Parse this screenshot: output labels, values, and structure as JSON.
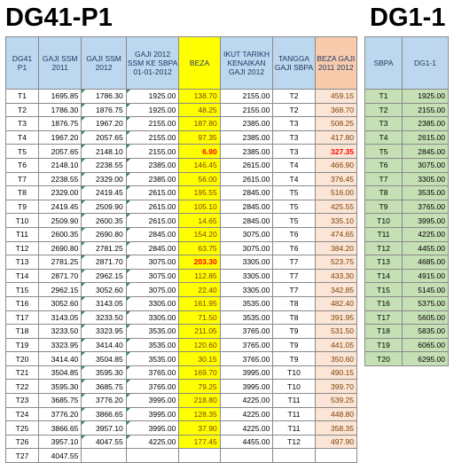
{
  "titles": {
    "left": "DG41-P1",
    "right": "DG1-1"
  },
  "headers": {
    "dg41": "DG41 P1",
    "gaji2011": "GAJI SSM 2011",
    "gaji2012": "GAJI SSM 2012",
    "gajiSbpa": "GAJI 2012 SSM KE SBPA 01-01-2012",
    "beza": "BEZA",
    "ikut": "IKUT TARIKH KENAIKAN GAJI 2012",
    "tangga": "TANGGA GAJI SBPA",
    "beza2": "BEZA GAJI 2011 2012"
  },
  "rows": [
    {
      "code": "T1",
      "g2011": "1695.85",
      "g2012": "1786.30",
      "gs": "1925.00",
      "beza": "138.70",
      "ikut": "2155.00",
      "tg": "T2",
      "b2": "459.15"
    },
    {
      "code": "T2",
      "g2011": "1786.30",
      "g2012": "1876.75",
      "gs": "1925.00",
      "beza": "48.25",
      "ikut": "2155.00",
      "tg": "T2",
      "b2": "368.70"
    },
    {
      "code": "T3",
      "g2011": "1876.75",
      "g2012": "1967.20",
      "gs": "2155.00",
      "beza": "187.80",
      "ikut": "2385.00",
      "tg": "T3",
      "b2": "508.25"
    },
    {
      "code": "T4",
      "g2011": "1967.20",
      "g2012": "2057.65",
      "gs": "2155.00",
      "beza": "97.35",
      "ikut": "2385.00",
      "tg": "T3",
      "b2": "417.80"
    },
    {
      "code": "T5",
      "g2011": "2057.65",
      "g2012": "2148.10",
      "gs": "2155.00",
      "beza": "6.90",
      "ikut": "2385.00",
      "tg": "T3",
      "b2": "327.35"
    },
    {
      "code": "T6",
      "g2011": "2148.10",
      "g2012": "2238.55",
      "gs": "2385.00",
      "beza": "146.45",
      "ikut": "2615.00",
      "tg": "T4",
      "b2": "466.90"
    },
    {
      "code": "T7",
      "g2011": "2238.55",
      "g2012": "2329.00",
      "gs": "2385.00",
      "beza": "56.00",
      "ikut": "2615.00",
      "tg": "T4",
      "b2": "376.45"
    },
    {
      "code": "T8",
      "g2011": "2329.00",
      "g2012": "2419.45",
      "gs": "2615.00",
      "beza": "195.55",
      "ikut": "2845.00",
      "tg": "T5",
      "b2": "516.00"
    },
    {
      "code": "T9",
      "g2011": "2419.45",
      "g2012": "2509.90",
      "gs": "2615.00",
      "beza": "105.10",
      "ikut": "2845.00",
      "tg": "T5",
      "b2": "425.55"
    },
    {
      "code": "T10",
      "g2011": "2509.90",
      "g2012": "2600.35",
      "gs": "2615.00",
      "beza": "14.65",
      "ikut": "2845.00",
      "tg": "T5",
      "b2": "335.10"
    },
    {
      "code": "T11",
      "g2011": "2600.35",
      "g2012": "2690.80",
      "gs": "2845.00",
      "beza": "154.20",
      "ikut": "3075.00",
      "tg": "T6",
      "b2": "474.65"
    },
    {
      "code": "T12",
      "g2011": "2690.80",
      "g2012": "2781.25",
      "gs": "2845.00",
      "beza": "63.75",
      "ikut": "3075.00",
      "tg": "T6",
      "b2": "384.20"
    },
    {
      "code": "T13",
      "g2011": "2781.25",
      "g2012": "2871.70",
      "gs": "3075.00",
      "beza": "203.30",
      "ikut": "3305.00",
      "tg": "T7",
      "b2": "523.75"
    },
    {
      "code": "T14",
      "g2011": "2871.70",
      "g2012": "2962.15",
      "gs": "3075.00",
      "beza": "112.85",
      "ikut": "3305.00",
      "tg": "T7",
      "b2": "433.30"
    },
    {
      "code": "T15",
      "g2011": "2962.15",
      "g2012": "3052.60",
      "gs": "3075.00",
      "beza": "22.40",
      "ikut": "3305.00",
      "tg": "T7",
      "b2": "342.85"
    },
    {
      "code": "T16",
      "g2011": "3052.60",
      "g2012": "3143.05",
      "gs": "3305.00",
      "beza": "161.95",
      "ikut": "3535.00",
      "tg": "T8",
      "b2": "482.40"
    },
    {
      "code": "T17",
      "g2011": "3143.05",
      "g2012": "3233.50",
      "gs": "3305.00",
      "beza": "71.50",
      "ikut": "3535.00",
      "tg": "T8",
      "b2": "391.95"
    },
    {
      "code": "T18",
      "g2011": "3233.50",
      "g2012": "3323.95",
      "gs": "3535.00",
      "beza": "211.05",
      "ikut": "3765.00",
      "tg": "T9",
      "b2": "531.50"
    },
    {
      "code": "T19",
      "g2011": "3323.95",
      "g2012": "3414.40",
      "gs": "3535.00",
      "beza": "120.60",
      "ikut": "3765.00",
      "tg": "T9",
      "b2": "441.05"
    },
    {
      "code": "T20",
      "g2011": "3414.40",
      "g2012": "3504.85",
      "gs": "3535.00",
      "beza": "30.15",
      "ikut": "3765.00",
      "tg": "T9",
      "b2": "350.60"
    },
    {
      "code": "T21",
      "g2011": "3504.85",
      "g2012": "3595.30",
      "gs": "3765.00",
      "beza": "169.70",
      "ikut": "3995.00",
      "tg": "T10",
      "b2": "490.15"
    },
    {
      "code": "T22",
      "g2011": "3595.30",
      "g2012": "3685.75",
      "gs": "3765.00",
      "beza": "79.25",
      "ikut": "3995.00",
      "tg": "T10",
      "b2": "399.70"
    },
    {
      "code": "T23",
      "g2011": "3685.75",
      "g2012": "3776.20",
      "gs": "3995.00",
      "beza": "218.80",
      "ikut": "4225.00",
      "tg": "T11",
      "b2": "539.25"
    },
    {
      "code": "T24",
      "g2011": "3776.20",
      "g2012": "3866.65",
      "gs": "3995.00",
      "beza": "128.35",
      "ikut": "4225.00",
      "tg": "T11",
      "b2": "448.80"
    },
    {
      "code": "T25",
      "g2011": "3866.65",
      "g2012": "3957.10",
      "gs": "3995.00",
      "beza": "37.90",
      "ikut": "4225.00",
      "tg": "T11",
      "b2": "358.35"
    },
    {
      "code": "T26",
      "g2011": "3957.10",
      "g2012": "4047.55",
      "gs": "4225.00",
      "beza": "177.45",
      "ikut": "4455.00",
      "tg": "T12",
      "b2": "497.90"
    },
    {
      "code": "T27",
      "g2011": "4047.55",
      "g2012": "",
      "gs": "",
      "beza": "",
      "ikut": "",
      "tg": "",
      "b2": ""
    }
  ],
  "sbpa": {
    "header_code": "SBPA",
    "header_val": "DG1-1",
    "rows": [
      {
        "code": "T1",
        "val": "1925.00"
      },
      {
        "code": "T2",
        "val": "2155.00"
      },
      {
        "code": "T3",
        "val": "2385.00"
      },
      {
        "code": "T4",
        "val": "2615.00"
      },
      {
        "code": "T5",
        "val": "2845.00"
      },
      {
        "code": "T6",
        "val": "3075.00"
      },
      {
        "code": "T7",
        "val": "3305.00"
      },
      {
        "code": "T8",
        "val": "3535.00"
      },
      {
        "code": "T9",
        "val": "3765.00"
      },
      {
        "code": "T10",
        "val": "3995.00"
      },
      {
        "code": "T11",
        "val": "4225.00"
      },
      {
        "code": "T12",
        "val": "4455.00"
      },
      {
        "code": "T13",
        "val": "4685.00"
      },
      {
        "code": "T14",
        "val": "4915.00"
      },
      {
        "code": "T15",
        "val": "5145.00"
      },
      {
        "code": "T16",
        "val": "5375.00"
      },
      {
        "code": "T17",
        "val": "5605.00"
      },
      {
        "code": "T18",
        "val": "5835.00"
      },
      {
        "code": "T19",
        "val": "6065.00"
      },
      {
        "code": "T20",
        "val": "6295.00"
      }
    ]
  }
}
